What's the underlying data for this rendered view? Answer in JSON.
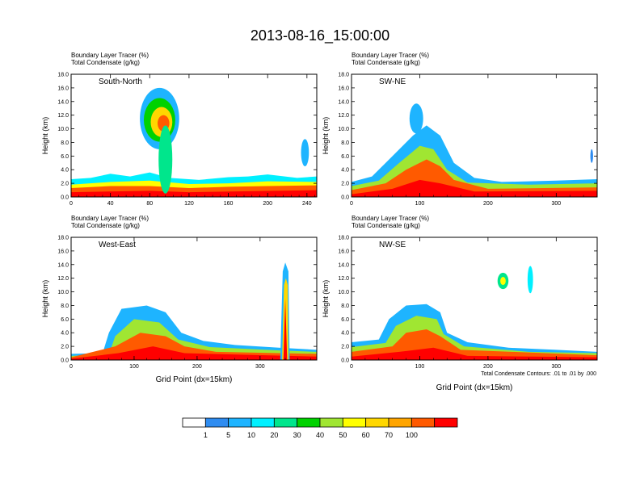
{
  "page": {
    "title": "2013-08-16_15:00:00",
    "contour_note": "Total Condensate Contours: .01 to .01 by .000"
  },
  "colorbar": {
    "colors": [
      "#ffffff",
      "#2f8cf0",
      "#1eb4ff",
      "#00f0ff",
      "#00e68c",
      "#00d200",
      "#a0e632",
      "#ffff00",
      "#ffd700",
      "#ffa500",
      "#ff5a00",
      "#ff0000"
    ],
    "labels": [
      "1",
      "5",
      "10",
      "20",
      "30",
      "40",
      "50",
      "60",
      "70",
      "100"
    ]
  },
  "chart_data": [
    {
      "type": "heatmap",
      "title": "South-North",
      "subtitle_lines": [
        "Boundary Layer Tracer   (%)",
        "Total Condensate   (g/kg)"
      ],
      "ylabel": "Height (km)",
      "xlabel": "",
      "xlim": [
        0,
        250
      ],
      "ylim": [
        0,
        18
      ],
      "x_ticks": [
        "0",
        "40",
        "80",
        "120",
        "160",
        "200",
        "240"
      ],
      "y_ticks": [
        "0.0",
        "2.0",
        "4.0",
        "6.0",
        "8.0",
        "10.0",
        "12.0",
        "14.0",
        "16.0",
        "18.0"
      ]
    },
    {
      "type": "heatmap",
      "title": "SW-NE",
      "subtitle_lines": [
        "Boundary Layer Tracer   (%)",
        "Total Condensate   (g/kg)"
      ],
      "ylabel": "Height (km)",
      "xlabel": "",
      "xlim": [
        0,
        360
      ],
      "ylim": [
        0,
        18
      ],
      "x_ticks": [
        "0",
        "100",
        "200",
        "300"
      ],
      "y_ticks": [
        "0.0",
        "2.0",
        "4.0",
        "6.0",
        "8.0",
        "10.0",
        "12.0",
        "14.0",
        "16.0",
        "18.0"
      ]
    },
    {
      "type": "heatmap",
      "title": "West-East",
      "subtitle_lines": [
        "Boundary Layer Tracer   (%)",
        "Total Condensate   (g/kg)"
      ],
      "ylabel": "Height (km)",
      "xlabel": "Grid Point (dx=15km)",
      "xlim": [
        0,
        390
      ],
      "ylim": [
        0,
        18
      ],
      "x_ticks": [
        "0",
        "100",
        "200",
        "300"
      ],
      "y_ticks": [
        "0.0",
        "2.0",
        "4.0",
        "6.0",
        "8.0",
        "10.0",
        "12.0",
        "14.0",
        "16.0",
        "18.0"
      ]
    },
    {
      "type": "heatmap",
      "title": "NW-SE",
      "subtitle_lines": [
        "Boundary Layer Tracer   (%)",
        "Total Condensate   (g/kg)"
      ],
      "ylabel": "Height (km)",
      "xlabel": "Grid Point (dx=15km)",
      "xlim": [
        0,
        360
      ],
      "ylim": [
        0,
        18
      ],
      "x_ticks": [
        "0",
        "100",
        "200",
        "300"
      ],
      "y_ticks": [
        "0.0",
        "2.0",
        "4.0",
        "6.0",
        "8.0",
        "10.0",
        "12.0",
        "14.0",
        "16.0",
        "18.0"
      ]
    }
  ]
}
